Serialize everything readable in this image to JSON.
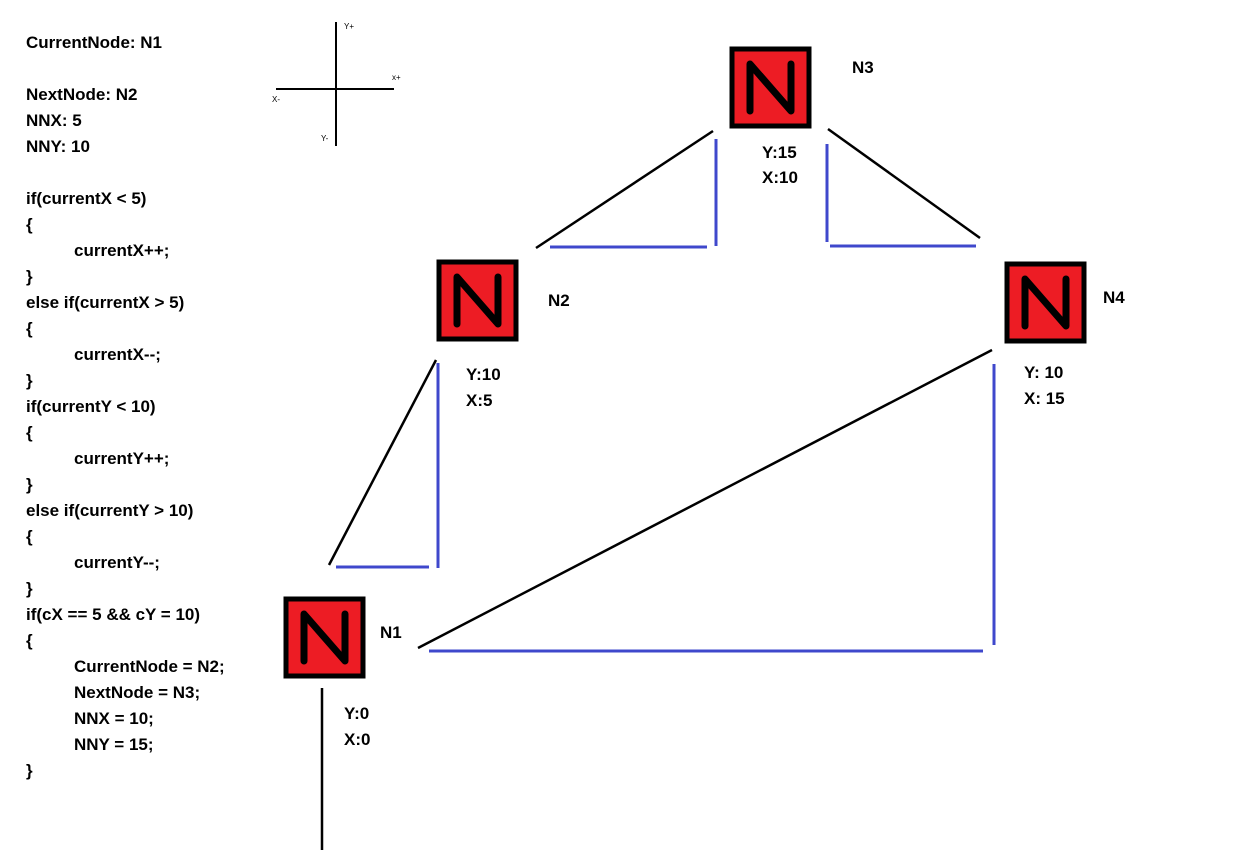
{
  "code_lines": [
    {
      "text": "CurrentNode: N1",
      "indent": false
    },
    {
      "text": "",
      "indent": false
    },
    {
      "text": "NextNode: N2",
      "indent": false
    },
    {
      "text": "NNX: 5",
      "indent": false
    },
    {
      "text": "NNY: 10",
      "indent": false
    },
    {
      "text": "",
      "indent": false
    },
    {
      "text": "if(currentX < 5)",
      "indent": false
    },
    {
      "text": "{",
      "indent": false
    },
    {
      "text": "currentX++;",
      "indent": true
    },
    {
      "text": "}",
      "indent": false
    },
    {
      "text": "else if(currentX > 5)",
      "indent": false
    },
    {
      "text": "{",
      "indent": false
    },
    {
      "text": "currentX--;",
      "indent": true
    },
    {
      "text": "}",
      "indent": false
    },
    {
      "text": "if(currentY < 10)",
      "indent": false
    },
    {
      "text": "{",
      "indent": false
    },
    {
      "text": "currentY++;",
      "indent": true
    },
    {
      "text": "}",
      "indent": false
    },
    {
      "text": "else if(currentY > 10)",
      "indent": false
    },
    {
      "text": "{",
      "indent": false
    },
    {
      "text": "currentY--;",
      "indent": true
    },
    {
      "text": "}",
      "indent": false
    },
    {
      "text": "if(cX == 5 && cY = 10)",
      "indent": false
    },
    {
      "text": "{",
      "indent": false
    },
    {
      "text": "CurrentNode = N2;",
      "indent": true
    },
    {
      "text": "NextNode = N3;",
      "indent": true
    },
    {
      "text": "NNX = 10;",
      "indent": true
    },
    {
      "text": "NNY = 15;",
      "indent": true
    },
    {
      "text": "}",
      "indent": false
    }
  ],
  "axes": {
    "y_plus": "Y+",
    "y_minus": "Y-",
    "x_plus": "x+",
    "x_minus": "X-"
  },
  "nodes": [
    {
      "id": "n1",
      "glyph": "N",
      "name": "N1",
      "y_label": "Y:0",
      "x_label": "X:0"
    },
    {
      "id": "n2",
      "glyph": "N",
      "name": "N2",
      "y_label": "Y:10",
      "x_label": "X:5"
    },
    {
      "id": "n3",
      "glyph": "N",
      "name": "N3",
      "y_label": "Y:15",
      "x_label": "X:10"
    },
    {
      "id": "n4",
      "glyph": "N",
      "name": "N4",
      "y_label": "Y: 10",
      "x_label": "X: 15"
    }
  ],
  "colors": {
    "node_fill": "#ed1c24",
    "node_border": "#000000",
    "leg_lines": "#3f48cc",
    "connector_lines": "#000000"
  }
}
